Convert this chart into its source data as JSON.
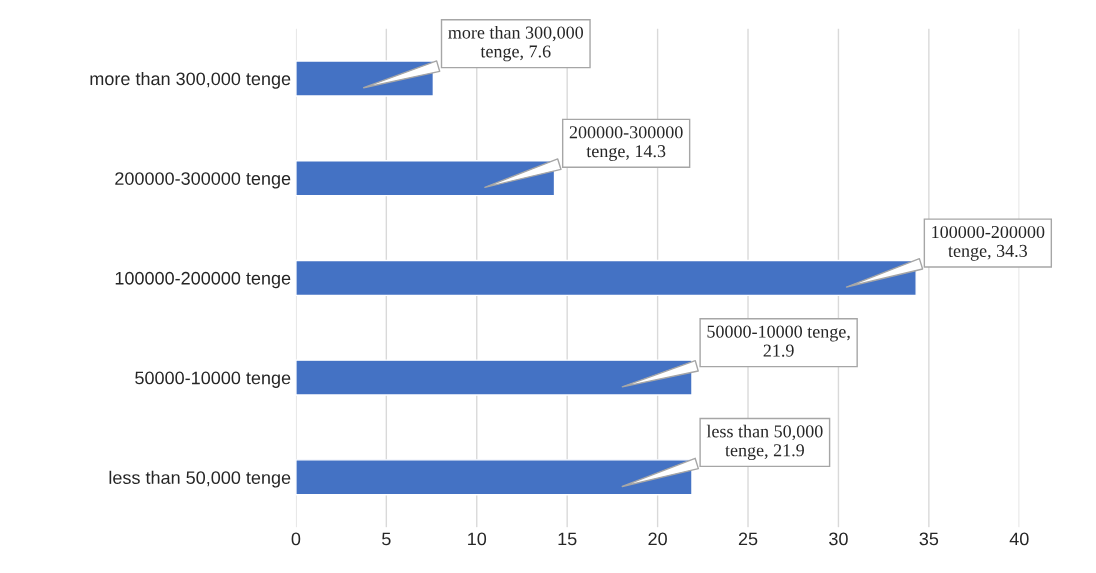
{
  "chart_data": {
    "type": "bar",
    "orientation": "horizontal",
    "categories": [
      "more than 300,000 tenge",
      "200000-300000 tenge",
      "100000-200000 tenge",
      "50000-10000 tenge",
      "less than 50,000 tenge"
    ],
    "values": [
      7.6,
      14.3,
      34.3,
      21.9,
      21.9
    ],
    "color": "#4472c4",
    "value_labels": [
      "more than 300,000\ntenge, 7.6",
      "200000-300000\ntenge, 14.3",
      "100000-200000\ntenge, 34.3",
      "50000-10000 tenge,\n21.9",
      "less than 50,000\ntenge, 21.9"
    ],
    "xlim": [
      0,
      40
    ],
    "xticks": [
      0,
      5,
      10,
      15,
      20,
      25,
      30,
      35,
      40
    ],
    "grid": "x"
  }
}
